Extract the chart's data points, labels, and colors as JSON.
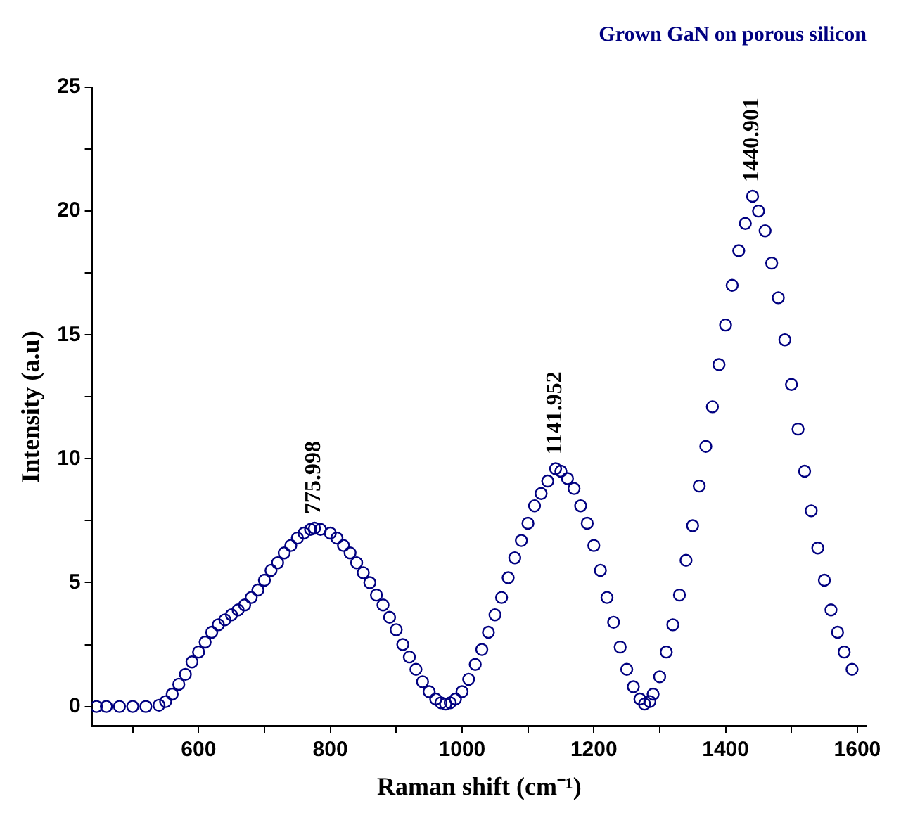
{
  "chart_data": {
    "type": "scatter",
    "title": "Grown GaN on porous silicon",
    "xlabel": "Raman shift (cm⁻¹)",
    "ylabel": "Intensity (a.u)",
    "xlim": [
      438,
      1614
    ],
    "ylim": [
      -0.8,
      25
    ],
    "xticks": [
      {
        "value": 500,
        "label": null
      },
      600,
      {
        "value": 700,
        "label": null
      },
      800,
      {
        "value": 900,
        "label": null
      },
      1000,
      {
        "value": 1100,
        "label": null
      },
      1200,
      {
        "value": 1300,
        "label": null
      },
      1400,
      {
        "value": 1500,
        "label": null
      },
      1600
    ],
    "yticks": [
      0,
      {
        "value": 2.5,
        "label": null
      },
      5,
      {
        "value": 7.5,
        "label": null
      },
      10,
      {
        "value": 12.5,
        "label": null
      },
      15,
      {
        "value": 17.5,
        "label": null
      },
      20,
      {
        "value": 22.5,
        "label": null
      },
      25
    ],
    "grid": false,
    "legend": false,
    "marker": "circle",
    "annotations": [
      {
        "text": "775.998",
        "x": 775.998,
        "y": 7.2
      },
      {
        "text": "1141.952",
        "x": 1141.952,
        "y": 9.6
      },
      {
        "text": "1440.901",
        "x": 1440.901,
        "y": 20.6
      }
    ],
    "series": [
      {
        "color": "#000080",
        "x": [
          445,
          460,
          480,
          500,
          520,
          540,
          550,
          560,
          570,
          580,
          590,
          600,
          610,
          620,
          630,
          640,
          650,
          660,
          670,
          680,
          690,
          700,
          710,
          720,
          730,
          740,
          750,
          760,
          770,
          776,
          785,
          800,
          810,
          820,
          830,
          840,
          850,
          860,
          870,
          880,
          890,
          900,
          910,
          920,
          930,
          940,
          950,
          960,
          968,
          975,
          982,
          990,
          1000,
          1010,
          1020,
          1030,
          1040,
          1050,
          1060,
          1070,
          1080,
          1090,
          1100,
          1110,
          1120,
          1130,
          1142,
          1150,
          1160,
          1170,
          1180,
          1190,
          1200,
          1210,
          1220,
          1230,
          1240,
          1250,
          1260,
          1270,
          1277,
          1285,
          1290,
          1300,
          1310,
          1320,
          1330,
          1340,
          1350,
          1360,
          1370,
          1380,
          1390,
          1400,
          1410,
          1420,
          1430,
          1441,
          1450,
          1460,
          1470,
          1480,
          1490,
          1500,
          1510,
          1520,
          1530,
          1540,
          1550,
          1560,
          1570,
          1580,
          1592
        ],
        "values": [
          0,
          0,
          0,
          0,
          0,
          0.05,
          0.2,
          0.5,
          0.9,
          1.3,
          1.8,
          2.2,
          2.6,
          3.0,
          3.3,
          3.5,
          3.7,
          3.9,
          4.1,
          4.4,
          4.7,
          5.1,
          5.5,
          5.8,
          6.2,
          6.5,
          6.8,
          7.0,
          7.15,
          7.2,
          7.15,
          7.0,
          6.8,
          6.5,
          6.2,
          5.8,
          5.4,
          5.0,
          4.5,
          4.1,
          3.6,
          3.1,
          2.5,
          2.0,
          1.5,
          1.0,
          0.6,
          0.3,
          0.15,
          0.1,
          0.15,
          0.3,
          0.6,
          1.1,
          1.7,
          2.3,
          3.0,
          3.7,
          4.4,
          5.2,
          6.0,
          6.7,
          7.4,
          8.1,
          8.6,
          9.1,
          9.6,
          9.5,
          9.2,
          8.8,
          8.1,
          7.4,
          6.5,
          5.5,
          4.4,
          3.4,
          2.4,
          1.5,
          0.8,
          0.3,
          0.1,
          0.2,
          0.5,
          1.2,
          2.2,
          3.3,
          4.5,
          5.9,
          7.3,
          8.9,
          10.5,
          12.1,
          13.8,
          15.4,
          17.0,
          18.4,
          19.5,
          20.6,
          20.0,
          19.2,
          17.9,
          16.5,
          14.8,
          13.0,
          11.2,
          9.5,
          7.9,
          6.4,
          5.1,
          3.9,
          3.0,
          2.2,
          1.5
        ]
      }
    ]
  }
}
